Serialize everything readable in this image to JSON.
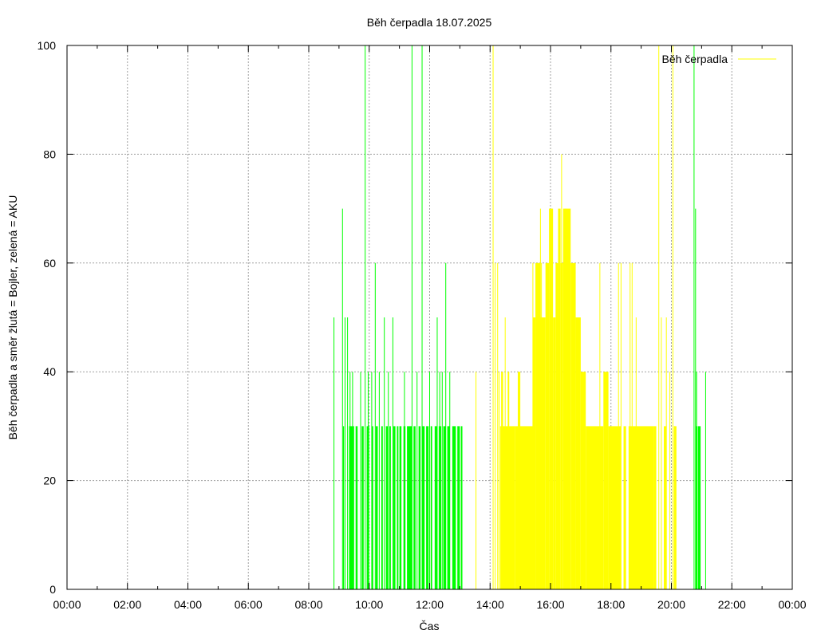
{
  "chart_data": {
    "type": "bar",
    "title": "Běh čerpadla 18.07.2025",
    "xlabel": "Čas",
    "ylabel": "Běh čerpadla a směr žlutá = Bojler, zelená = AKU",
    "xlim": [
      "00:00",
      "24:00"
    ],
    "ylim": [
      0,
      100
    ],
    "x_ticks": [
      "00:00",
      "02:00",
      "04:00",
      "06:00",
      "08:00",
      "10:00",
      "12:00",
      "14:00",
      "16:00",
      "18:00",
      "20:00",
      "22:00",
      "00:00"
    ],
    "y_ticks": [
      "0",
      "20",
      "40",
      "60",
      "80",
      "100"
    ],
    "grid": true,
    "legend": {
      "position": "top-right",
      "entries": [
        "Běh čerpadla"
      ]
    },
    "colors": {
      "aku": "#00ff00",
      "bojler": "#ffff00"
    },
    "series": [
      {
        "color": "#00ff00",
        "spikes": [
          [
            "08:50",
            50
          ],
          [
            "09:07",
            70
          ],
          [
            "09:12",
            50
          ],
          [
            "09:17",
            50
          ],
          [
            "09:22",
            40
          ],
          [
            "09:27",
            40
          ],
          [
            "09:43",
            40
          ],
          [
            "09:52",
            100
          ],
          [
            "09:58",
            40
          ],
          [
            "10:05",
            40
          ],
          [
            "10:12",
            60
          ],
          [
            "10:20",
            40
          ],
          [
            "10:30",
            50
          ],
          [
            "10:38",
            40
          ],
          [
            "10:47",
            50
          ],
          [
            "11:10",
            40
          ],
          [
            "11:25",
            100
          ],
          [
            "11:35",
            40
          ],
          [
            "11:45",
            100
          ],
          [
            "12:00",
            40
          ],
          [
            "12:15",
            50
          ],
          [
            "12:20",
            40
          ],
          [
            "12:25",
            40
          ],
          [
            "12:32",
            60
          ],
          [
            "12:40",
            40
          ],
          [
            "20:45",
            100
          ],
          [
            "20:48",
            70
          ],
          [
            "20:50",
            40
          ],
          [
            "21:08",
            40
          ]
        ],
        "blocks": [
          [
            "09:08",
            "09:10",
            30
          ],
          [
            "09:20",
            "09:30",
            30
          ],
          [
            "09:33",
            "09:37",
            30
          ],
          [
            "09:45",
            "09:49",
            30
          ],
          [
            "09:55",
            "10:00",
            30
          ],
          [
            "10:05",
            "10:08",
            30
          ],
          [
            "10:13",
            "10:17",
            30
          ],
          [
            "10:24",
            "10:27",
            30
          ],
          [
            "10:33",
            "10:37",
            30
          ],
          [
            "10:40",
            "10:43",
            30
          ],
          [
            "10:48",
            "10:52",
            30
          ],
          [
            "10:55",
            "10:58",
            30
          ],
          [
            "11:00",
            "11:04",
            30
          ],
          [
            "11:08",
            "11:12",
            30
          ],
          [
            "11:15",
            "11:25",
            30
          ],
          [
            "11:28",
            "11:32",
            30
          ],
          [
            "11:38",
            "11:42",
            30
          ],
          [
            "11:45",
            "11:50",
            30
          ],
          [
            "11:53",
            "11:58",
            30
          ],
          [
            "12:02",
            "12:05",
            30
          ],
          [
            "12:10",
            "12:15",
            30
          ],
          [
            "12:18",
            "12:23",
            30
          ],
          [
            "12:27",
            "12:32",
            30
          ],
          [
            "12:35",
            "12:40",
            30
          ],
          [
            "12:45",
            "12:52",
            30
          ],
          [
            "12:55",
            "13:00",
            30
          ],
          [
            "13:02",
            "13:05",
            30
          ],
          [
            "20:48",
            "20:52",
            30
          ],
          [
            "20:53",
            "20:58",
            30
          ]
        ]
      },
      {
        "color": "#ffff00",
        "spikes": [
          [
            "13:32",
            40
          ],
          [
            "14:06",
            100
          ],
          [
            "14:10",
            60
          ],
          [
            "14:15",
            60
          ],
          [
            "14:18",
            40
          ],
          [
            "14:25",
            40
          ],
          [
            "14:30",
            50
          ],
          [
            "15:25",
            60
          ],
          [
            "15:35",
            60
          ],
          [
            "15:40",
            70
          ],
          [
            "15:42",
            60
          ],
          [
            "16:15",
            50
          ],
          [
            "16:22",
            80
          ],
          [
            "16:30",
            70
          ],
          [
            "17:38",
            60
          ],
          [
            "18:15",
            60
          ],
          [
            "18:20",
            60
          ],
          [
            "18:38",
            60
          ],
          [
            "18:42",
            60
          ],
          [
            "18:50",
            50
          ],
          [
            "19:35",
            100
          ],
          [
            "19:40",
            50
          ],
          [
            "19:50",
            50
          ],
          [
            "19:57",
            40
          ],
          [
            "20:03",
            100
          ],
          [
            "20:06",
            30
          ]
        ],
        "blocks": [
          [
            "14:20",
            "14:50",
            30
          ],
          [
            "14:22",
            "14:25",
            40
          ],
          [
            "14:35",
            "14:38",
            40
          ],
          [
            "14:50",
            "15:25",
            30
          ],
          [
            "14:55",
            "15:00",
            40
          ],
          [
            "15:25",
            "15:30",
            50
          ],
          [
            "15:30",
            "15:40",
            60
          ],
          [
            "15:40",
            "15:50",
            50
          ],
          [
            "15:50",
            "15:57",
            60
          ],
          [
            "15:57",
            "16:05",
            70
          ],
          [
            "16:05",
            "16:10",
            50
          ],
          [
            "16:10",
            "16:15",
            60
          ],
          [
            "16:15",
            "16:20",
            70
          ],
          [
            "16:20",
            "16:25",
            60
          ],
          [
            "16:25",
            "16:40",
            70
          ],
          [
            "16:40",
            "16:50",
            60
          ],
          [
            "16:50",
            "17:00",
            50
          ],
          [
            "17:00",
            "17:10",
            40
          ],
          [
            "17:10",
            "17:45",
            30
          ],
          [
            "17:45",
            "17:55",
            40
          ],
          [
            "17:55",
            "18:20",
            30
          ],
          [
            "18:25",
            "18:30",
            30
          ],
          [
            "18:35",
            "19:25",
            30
          ],
          [
            "19:25",
            "19:30",
            30
          ],
          [
            "19:45",
            "19:50",
            30
          ],
          [
            "20:05",
            "20:10",
            30
          ]
        ]
      }
    ]
  }
}
